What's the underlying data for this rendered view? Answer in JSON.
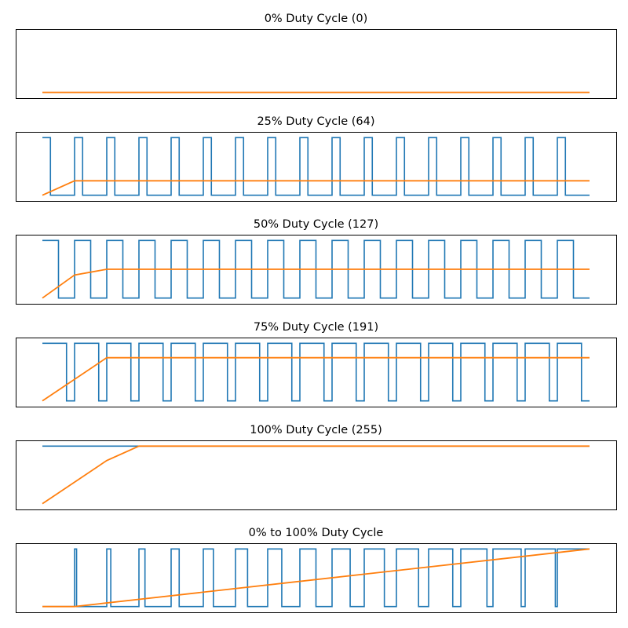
{
  "colors": {
    "pwm": "#1f77b4",
    "average": "#ff7f0e",
    "frame": "#000000",
    "background": "#ffffff"
  },
  "chart_data": [
    {
      "type": "line",
      "title": "0% Duty Cycle (0)",
      "duty_fraction": 0.0,
      "periods": 17,
      "xlim": [
        0,
        17
      ],
      "ylim": [
        -0.1,
        1.1
      ],
      "grid": false,
      "axis_ticks": false,
      "series": [
        {
          "key": "pwm",
          "style": "step",
          "color": "#1f77b4",
          "high": 1.0,
          "low": 0.0,
          "visible": false
        },
        {
          "key": "average",
          "style": "line",
          "color": "#ff7f0e",
          "x": [
            0,
            17
          ],
          "y": [
            0.0,
            0.0
          ]
        }
      ]
    },
    {
      "type": "line",
      "title": "25% Duty Cycle (64)",
      "duty_fraction": 0.25,
      "periods": 17,
      "xlim": [
        0,
        17
      ],
      "ylim": [
        -0.1,
        1.1
      ],
      "grid": false,
      "axis_ticks": false,
      "series": [
        {
          "key": "pwm",
          "style": "step",
          "color": "#1f77b4",
          "high": 1.0,
          "low": 0.0
        },
        {
          "key": "average",
          "style": "line",
          "color": "#ff7f0e",
          "x": [
            0,
            1,
            17
          ],
          "y": [
            0.0,
            0.25,
            0.25
          ]
        }
      ]
    },
    {
      "type": "line",
      "title": "50% Duty Cycle (127)",
      "duty_fraction": 0.5,
      "periods": 17,
      "xlim": [
        0,
        17
      ],
      "ylim": [
        -0.1,
        1.1
      ],
      "grid": false,
      "axis_ticks": false,
      "series": [
        {
          "key": "pwm",
          "style": "step",
          "color": "#1f77b4",
          "high": 1.0,
          "low": 0.0
        },
        {
          "key": "average",
          "style": "line",
          "color": "#ff7f0e",
          "x": [
            0,
            1,
            2,
            17
          ],
          "y": [
            0.0,
            0.4,
            0.5,
            0.5
          ]
        }
      ]
    },
    {
      "type": "line",
      "title": "75% Duty Cycle (191)",
      "duty_fraction": 0.75,
      "periods": 17,
      "xlim": [
        0,
        17
      ],
      "ylim": [
        -0.1,
        1.1
      ],
      "grid": false,
      "axis_ticks": false,
      "series": [
        {
          "key": "pwm",
          "style": "step",
          "color": "#1f77b4",
          "high": 1.0,
          "low": 0.0
        },
        {
          "key": "average",
          "style": "line",
          "color": "#ff7f0e",
          "x": [
            0,
            2,
            17
          ],
          "y": [
            0.0,
            0.75,
            0.75
          ]
        }
      ]
    },
    {
      "type": "line",
      "title": "100% Duty Cycle (255)",
      "duty_fraction": 1.0,
      "periods": 17,
      "xlim": [
        0,
        17
      ],
      "ylim": [
        -0.1,
        1.1
      ],
      "grid": false,
      "axis_ticks": false,
      "series": [
        {
          "key": "pwm",
          "style": "step",
          "color": "#1f77b4",
          "high": 1.0,
          "low": 0.0
        },
        {
          "key": "average",
          "style": "line",
          "color": "#ff7f0e",
          "x": [
            0,
            2,
            3,
            17
          ],
          "y": [
            0.0,
            0.75,
            1.0,
            1.0
          ]
        }
      ]
    },
    {
      "type": "line",
      "title": "0% to 100% Duty Cycle",
      "duty_sweep": [
        0,
        1
      ],
      "periods": 17,
      "xlim": [
        0,
        17
      ],
      "ylim": [
        -0.1,
        1.1
      ],
      "grid": false,
      "axis_ticks": false,
      "series": [
        {
          "key": "pwm",
          "style": "step",
          "color": "#1f77b4",
          "high": 1.0,
          "low": 0.0
        },
        {
          "key": "average",
          "style": "line",
          "color": "#ff7f0e",
          "x": [
            0,
            1,
            17
          ],
          "y": [
            0.0,
            0.0,
            1.0
          ]
        }
      ]
    }
  ]
}
